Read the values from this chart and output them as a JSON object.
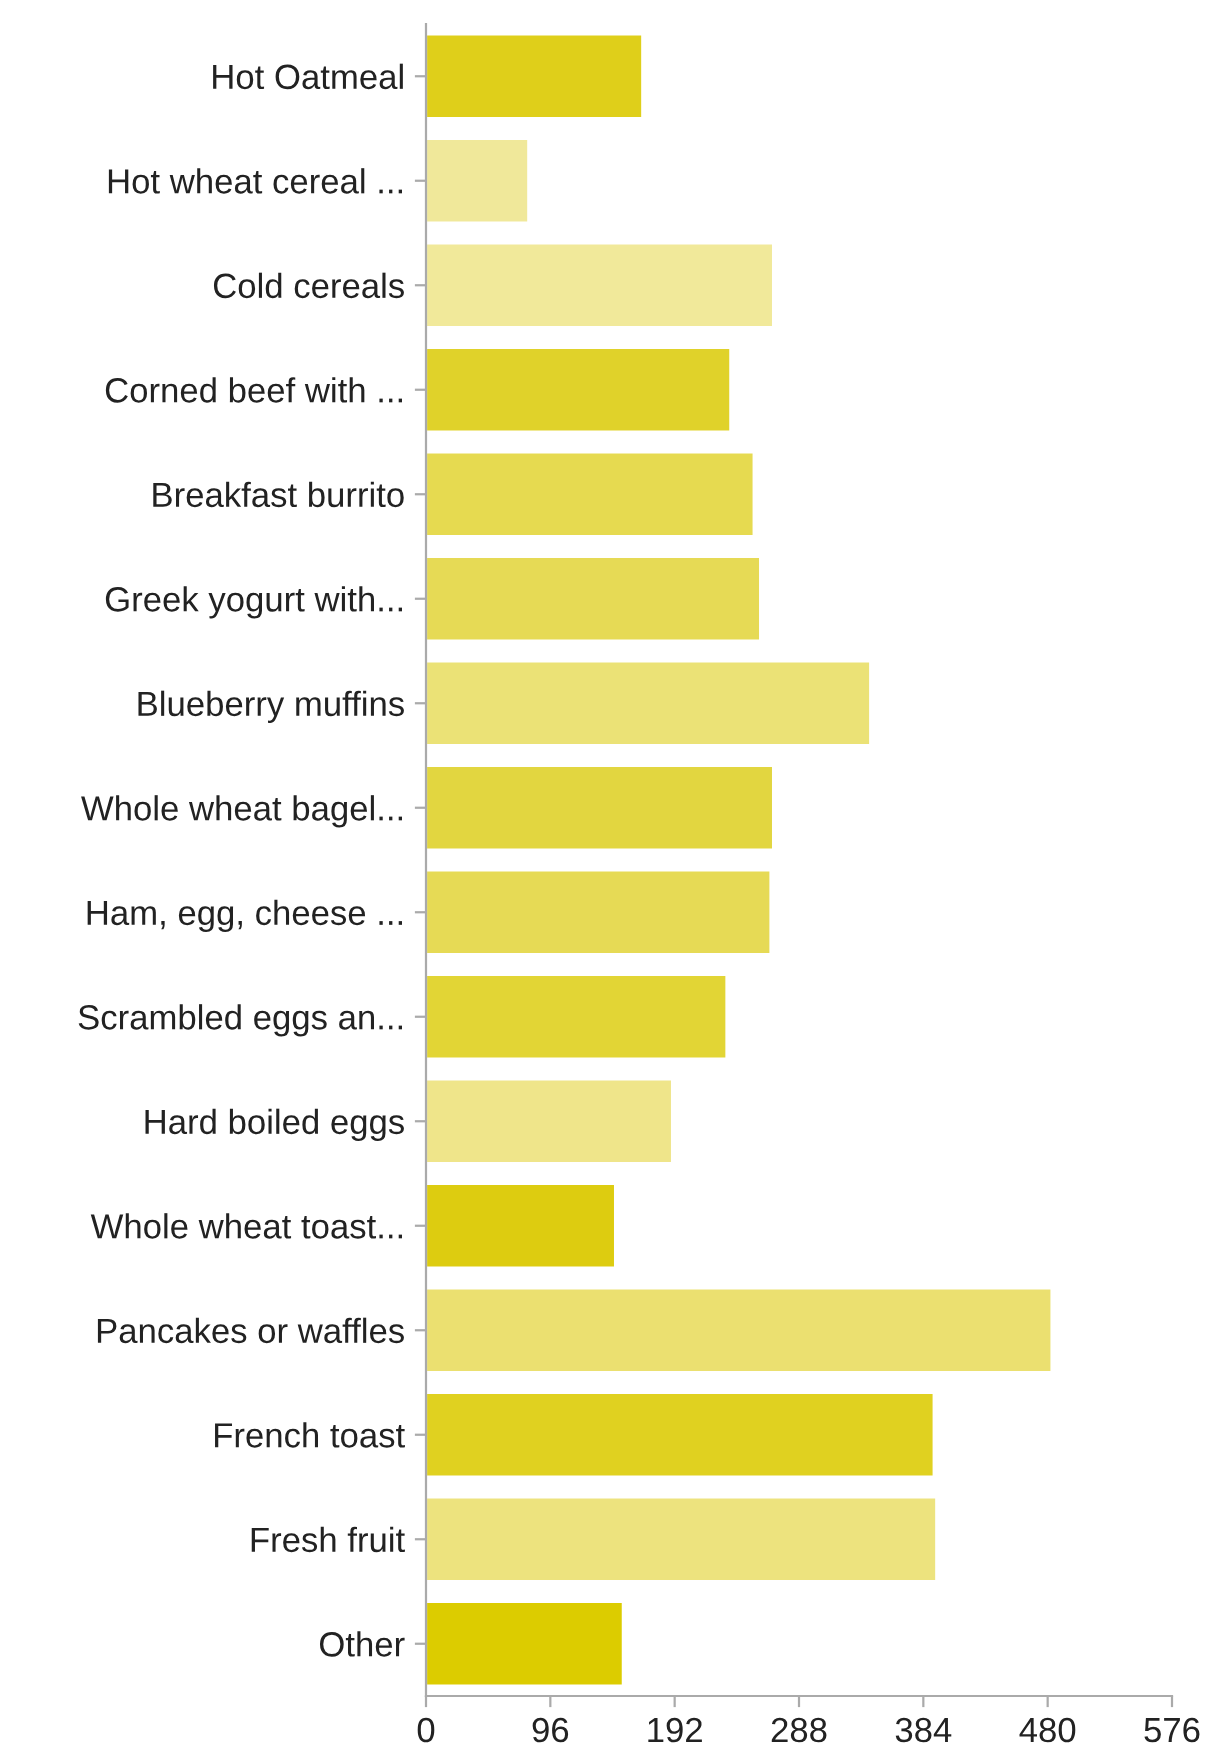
{
  "chart_data": {
    "type": "bar",
    "orientation": "horizontal",
    "categories": [
      "Hot Oatmeal",
      "Hot wheat cereal ...",
      "Cold cereals",
      "Corned beef with ...",
      "Breakfast burrito",
      "Greek yogurt with...",
      "Blueberry muffins",
      "Whole wheat bagel...",
      "Ham, egg, cheese ...",
      "Scrambled eggs an...",
      "Hard boiled eggs",
      "Whole wheat toast...",
      "Pancakes or waffles",
      "French toast",
      "Fresh fruit",
      "Other"
    ],
    "values": [
      167,
      79,
      268,
      235,
      253,
      258,
      343,
      268,
      266,
      232,
      190,
      146,
      483,
      392,
      394,
      152
    ],
    "colors": [
      "#dfcf1a",
      "#f0e89a",
      "#f1e99a",
      "#e0d22a",
      "#e6da50",
      "#e6da55",
      "#ebe276",
      "#e2d640",
      "#e6da55",
      "#e2d535",
      "#efe58a",
      "#ddcc10",
      "#ebe070",
      "#e0d120",
      "#ede37e",
      "#dccc00"
    ],
    "xlim": [
      0,
      576
    ],
    "xticks": [
      0,
      96,
      192,
      288,
      384,
      480,
      576
    ],
    "grid": false
  }
}
